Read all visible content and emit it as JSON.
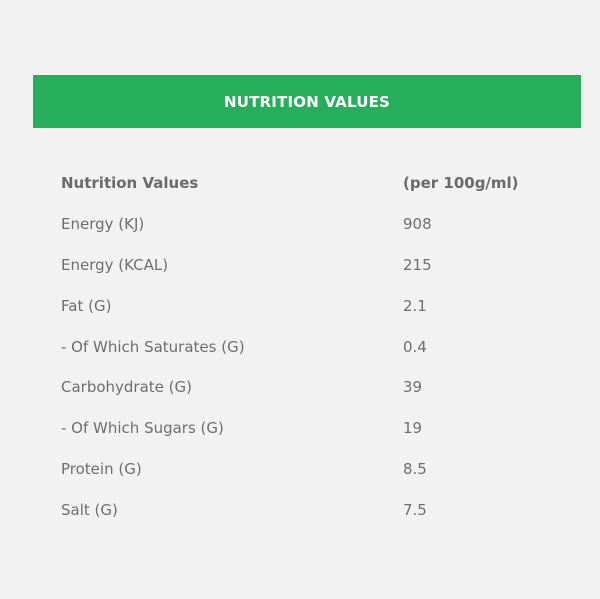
{
  "header": {
    "title": "NUTRITION VALUES",
    "background_color": "#27ae5a"
  },
  "table": {
    "columns": [
      "Nutrition Values",
      "(per 100g/ml)"
    ],
    "rows": [
      {
        "name": "Energy (KJ)",
        "value": "908"
      },
      {
        "name": "Energy (KCAL)",
        "value": "215"
      },
      {
        "name": "Fat (G)",
        "value": "2.1"
      },
      {
        "name": "- Of Which Saturates (G)",
        "value": "0.4"
      },
      {
        "name": "Carbohydrate (G)",
        "value": "39"
      },
      {
        "name": "- Of Which Sugars (G)",
        "value": "19"
      },
      {
        "name": "Protein (G)",
        "value": "8.5"
      },
      {
        "name": "Salt (G)",
        "value": "7.5"
      }
    ]
  }
}
